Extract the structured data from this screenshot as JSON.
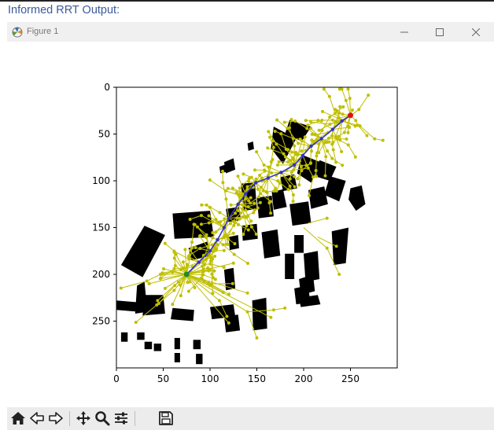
{
  "heading": "Informed RRT Output:",
  "window": {
    "title": "Figure 1",
    "controls": [
      "minimize-icon",
      "maximize-icon",
      "close-icon"
    ]
  },
  "toolbar": {
    "icons": [
      "home-icon",
      "back-arrow-icon",
      "forward-arrow-icon",
      "pan-icon",
      "zoom-icon",
      "configure-subplots-icon",
      "save-icon"
    ]
  },
  "colors": {
    "tree": "#bfbf00",
    "path": "#3333cc",
    "start": "#228b22",
    "goal": "#e01010",
    "obstacle": "#000000"
  },
  "chart_data": {
    "type": "scatter",
    "xlim": [
      0,
      300
    ],
    "ylim": [
      300,
      0
    ],
    "x_ticks": [
      0,
      50,
      100,
      150,
      200,
      250
    ],
    "y_ticks": [
      0,
      50,
      100,
      150,
      200,
      250
    ],
    "start": [
      75,
      200
    ],
    "goal": [
      250,
      30
    ],
    "path": [
      [
        75,
        200
      ],
      [
        88,
        187
      ],
      [
        100,
        175
      ],
      [
        108,
        163
      ],
      [
        115,
        150
      ],
      [
        120,
        140
      ],
      [
        130,
        125
      ],
      [
        138,
        114
      ],
      [
        149,
        102
      ],
      [
        162,
        97
      ],
      [
        176,
        91
      ],
      [
        190,
        83
      ],
      [
        199,
        73
      ],
      [
        208,
        63
      ],
      [
        219,
        55
      ],
      [
        231,
        45
      ],
      [
        241,
        36
      ],
      [
        250,
        30
      ]
    ],
    "grid": false
  }
}
